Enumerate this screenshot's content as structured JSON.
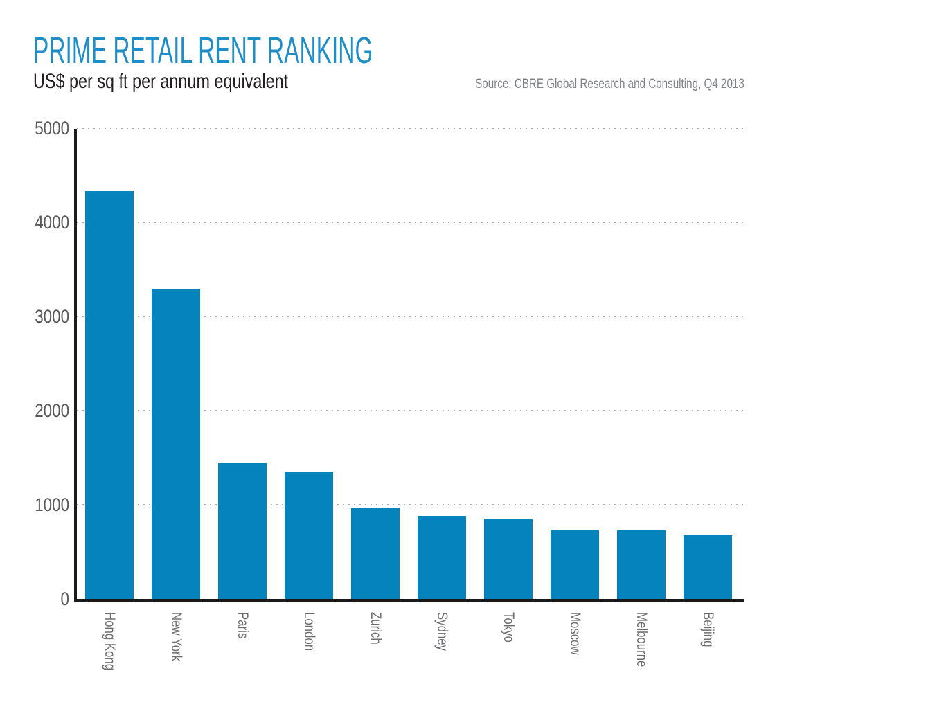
{
  "header": {
    "title": "PRIME RETAIL RENT RANKING",
    "subtitle": "US$ per sq ft per annum equivalent",
    "source": "Source: CBRE Global Research and Consulting, Q4 2013"
  },
  "colors": {
    "title_blue": "#1E8EC9",
    "bar_blue": "#0483BC",
    "axis_black": "#1A1A1A",
    "y_tick_gray": "#58595B",
    "x_tick_gray": "#6D6E71",
    "gridline_gray": "#A7A9AC",
    "source_gray": "#808285",
    "background": "#FFFFFF"
  },
  "chart_data": {
    "type": "bar",
    "title": "PRIME RETAIL RENT RANKING",
    "subtitle": "US$ per sq ft per annum equivalent",
    "source": "Source: CBRE Global Research and Consulting, Q4 2013",
    "categories": [
      "Hong Kong",
      "New York",
      "Paris",
      "London",
      "Zurich",
      "Sydney",
      "Tokyo",
      "Moscow",
      "Melbourne",
      "Beijing"
    ],
    "values": [
      4334,
      3300,
      1452,
      1356,
      963,
      881,
      855,
      738,
      728,
      678
    ],
    "xlabel": "",
    "ylabel": "US$ per sq ft per annum equivalent",
    "ylim": [
      0,
      5000
    ],
    "y_ticks": [
      0,
      1000,
      2000,
      3000,
      4000,
      5000
    ],
    "grid": "horizontal dotted lines at each 1000, drawn behind bars",
    "legend": "none",
    "bar_color": "#0483BC",
    "x_label_rotation": 90
  }
}
